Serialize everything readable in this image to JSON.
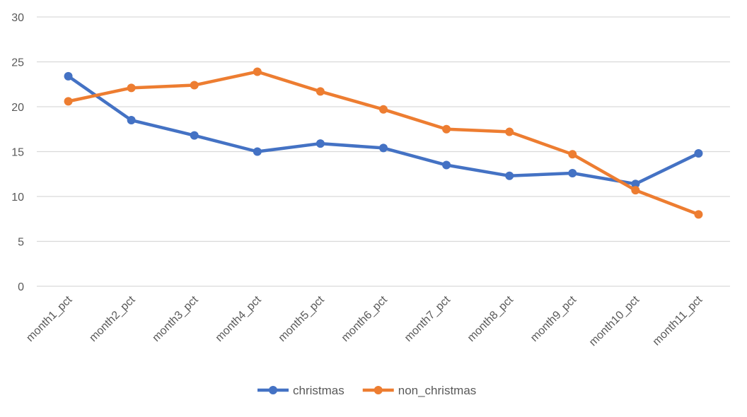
{
  "chart_data": {
    "type": "line",
    "categories": [
      "month1_pct",
      "month2_pct",
      "month3_pct",
      "month4_pct",
      "month5_pct",
      "month6_pct",
      "month7_pct",
      "month8_pct",
      "month9_pct",
      "month10_pct",
      "month11_pct"
    ],
    "series": [
      {
        "name": "christmas",
        "color": "#4472C4",
        "values": [
          23.4,
          18.5,
          16.8,
          15.0,
          15.9,
          15.4,
          13.5,
          12.3,
          12.6,
          11.4,
          14.8
        ]
      },
      {
        "name": "non_christmas",
        "color": "#ED7D31",
        "values": [
          20.6,
          22.1,
          22.4,
          23.9,
          21.7,
          19.7,
          17.5,
          17.2,
          14.7,
          10.7,
          8.0
        ]
      }
    ],
    "ylim": [
      0,
      30
    ],
    "yticks": [
      "0",
      "5",
      "10",
      "15",
      "20",
      "25",
      "30"
    ],
    "grid": true,
    "legend_position": "bottom"
  }
}
